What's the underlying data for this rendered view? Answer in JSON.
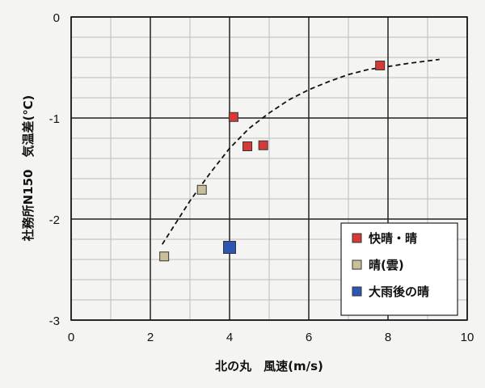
{
  "chart_data": {
    "type": "scatter",
    "xlabel": "北の丸　風速(m/s)",
    "ylabel": "社務所N150　気温差(℃)",
    "xlim": [
      0,
      10
    ],
    "ylim": [
      -3,
      0
    ],
    "x_ticks": [
      0,
      2,
      4,
      6,
      8,
      10
    ],
    "y_ticks": [
      0,
      -1,
      -2,
      -3
    ],
    "x_tick_labels": [
      "0",
      "2",
      "4",
      "6",
      "8",
      "10"
    ],
    "y_tick_labels": [
      "0",
      "-1",
      "-2",
      "-3"
    ],
    "grid": true,
    "legend_position": "bottom-right",
    "series": [
      {
        "name": "快晴・晴",
        "color": "#d63a36",
        "marker": "square",
        "points": [
          {
            "x": 4.1,
            "y": -0.99
          },
          {
            "x": 4.45,
            "y": -1.28
          },
          {
            "x": 4.85,
            "y": -1.27
          },
          {
            "x": 7.8,
            "y": -0.48
          }
        ]
      },
      {
        "name": "晴(雲)",
        "color": "#c9c09a",
        "marker": "square",
        "points": [
          {
            "x": 2.35,
            "y": -2.37
          },
          {
            "x": 3.3,
            "y": -1.71
          }
        ]
      },
      {
        "name": "大雨後の晴",
        "color": "#2f55b4",
        "marker": "square-large",
        "points": [
          {
            "x": 4.0,
            "y": -2.28
          }
        ]
      }
    ],
    "trendline": {
      "style": "dashed",
      "color": "#111111",
      "points": [
        {
          "x": 2.3,
          "y": -2.25
        },
        {
          "x": 3.0,
          "y": -1.82
        },
        {
          "x": 3.5,
          "y": -1.55
        },
        {
          "x": 4.0,
          "y": -1.3
        },
        {
          "x": 4.5,
          "y": -1.1
        },
        {
          "x": 5.0,
          "y": -0.95
        },
        {
          "x": 5.5,
          "y": -0.82
        },
        {
          "x": 6.0,
          "y": -0.72
        },
        {
          "x": 6.5,
          "y": -0.64
        },
        {
          "x": 7.0,
          "y": -0.57
        },
        {
          "x": 7.5,
          "y": -0.52
        },
        {
          "x": 8.0,
          "y": -0.49
        },
        {
          "x": 8.5,
          "y": -0.46
        },
        {
          "x": 9.3,
          "y": -0.42
        }
      ]
    }
  }
}
